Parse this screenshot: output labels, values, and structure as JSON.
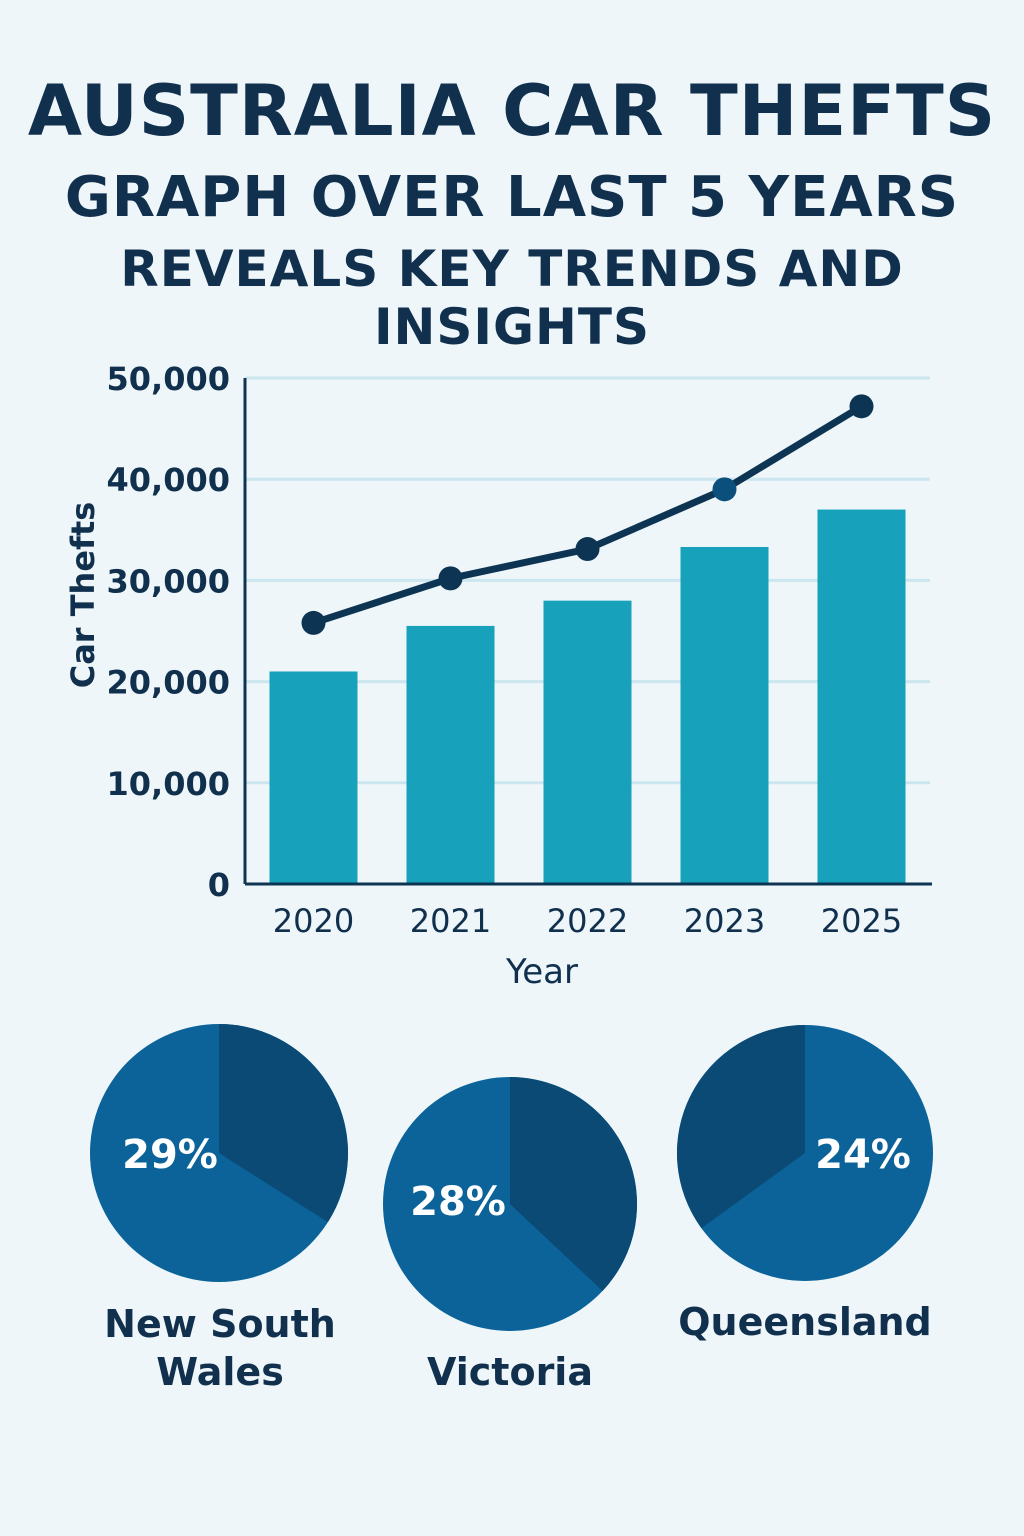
{
  "title": {
    "line1": "AUSTRALIA CAR THEFTS",
    "line2": "GRAPH OVER LAST 5 YEARS",
    "line3": "REVEALS KEY TRENDS AND INSIGHTS"
  },
  "colors": {
    "bar": "#17a1bb",
    "line": "#0d3553",
    "pie_dark": "#0a4a75",
    "pie_light": "#0b6399",
    "grid": "#cbe6ef"
  },
  "chart_data": [
    {
      "type": "bar+line",
      "xlabel": "Year",
      "ylabel": "Car Thefts",
      "ylim": [
        0,
        50000
      ],
      "yticks": [
        "0",
        "10,000",
        "20,000",
        "30,000",
        "40,000",
        "50,000"
      ],
      "grid": true,
      "categories": [
        "2020",
        "2021",
        "2022",
        "2023",
        "2025"
      ],
      "series": [
        {
          "type": "bar",
          "values": [
            21000,
            25500,
            28000,
            33300,
            37000
          ]
        },
        {
          "type": "line",
          "values": [
            25800,
            30200,
            33100,
            39000,
            47200
          ]
        }
      ]
    },
    {
      "type": "pie",
      "pies": [
        {
          "label": "New South Wales",
          "value_label": "29%",
          "dark_share": 34,
          "dark_start": "top-clockwise"
        },
        {
          "label": "Victoria",
          "value_label": "28%",
          "dark_share": 37,
          "dark_start": "top-clockwise"
        },
        {
          "label": "Queensland",
          "value_label": "24%",
          "dark_share": 35,
          "dark_start": "top-counterclockwise"
        }
      ]
    }
  ]
}
